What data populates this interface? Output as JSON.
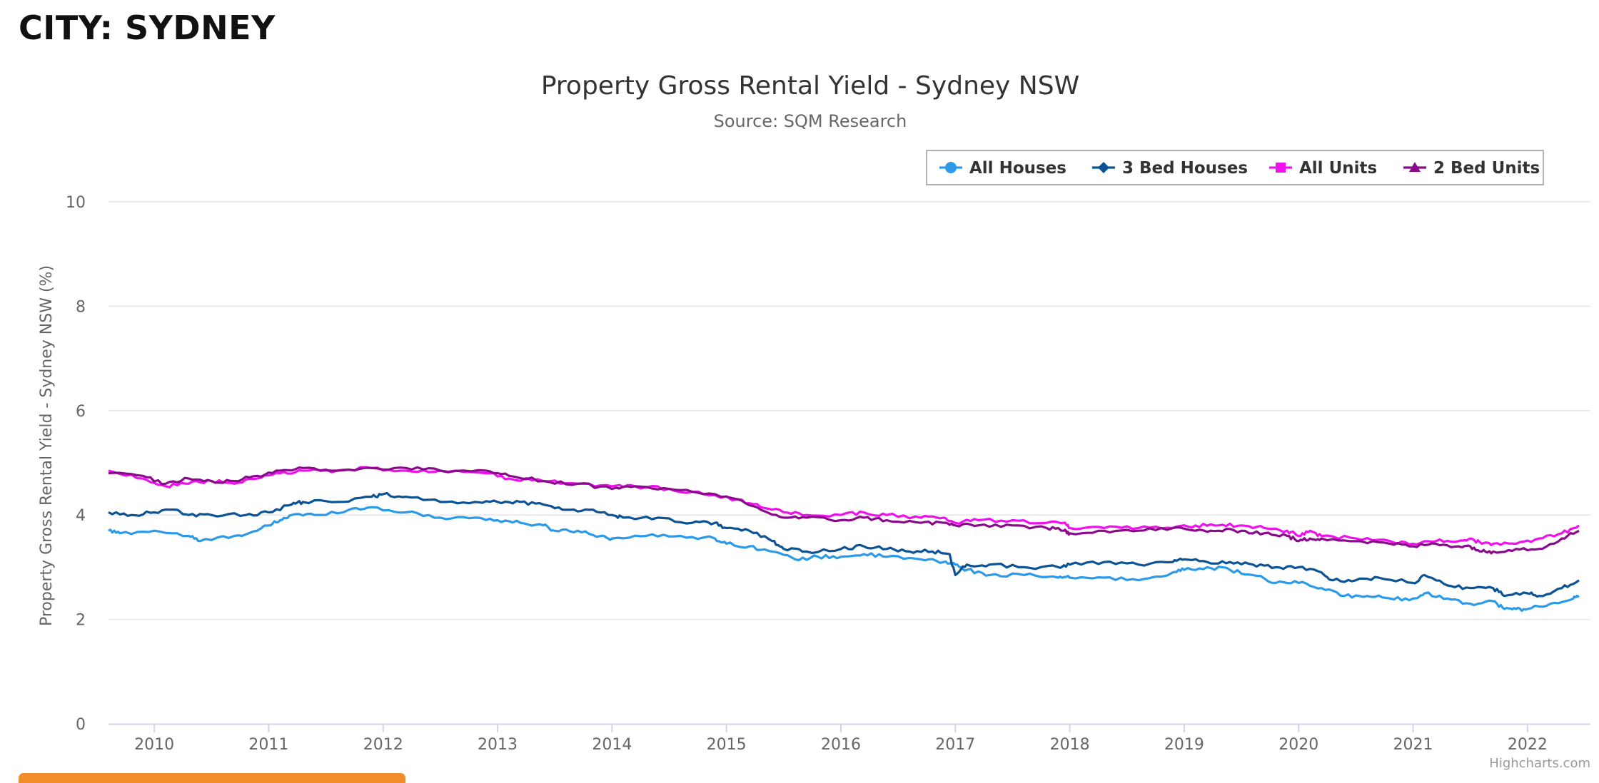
{
  "page": {
    "heading": "CITY: SYDNEY"
  },
  "chart_data": {
    "type": "line",
    "title": "Property Gross Rental Yield - Sydney NSW",
    "subtitle": "Source: SQM Research",
    "ylabel": "Property Gross Rental Yield - Sydney NSW (%)",
    "xlabel": "",
    "ylim": [
      0,
      10
    ],
    "yticks": [
      0,
      2,
      4,
      6,
      8,
      10
    ],
    "xlim": [
      2009.6,
      2022.55
    ],
    "xticks": [
      "2010",
      "2011",
      "2012",
      "2013",
      "2014",
      "2015",
      "2016",
      "2017",
      "2018",
      "2019",
      "2020",
      "2021",
      "2022"
    ],
    "grid": true,
    "legend": "top-right",
    "credit": "Highcharts.com",
    "series": [
      {
        "name": "All Houses",
        "color": "#2b9ae8",
        "marker": "circle",
        "x": [
          2009.6,
          2009.7,
          2010.0,
          2010.3,
          2010.4,
          2010.7,
          2010.9,
          2011.0,
          2011.1,
          2011.2,
          2011.4,
          2011.7,
          2011.9,
          2012.2,
          2012.5,
          2012.8,
          2013.0,
          2013.2,
          2013.4,
          2013.5,
          2013.7,
          2013.9,
          2014.0,
          2014.3,
          2014.6,
          2014.9,
          2015.0,
          2015.2,
          2015.4,
          2015.6,
          2015.8,
          2016.0,
          2016.2,
          2016.4,
          2016.7,
          2016.9,
          2017.0,
          2017.1,
          2017.3,
          2017.6,
          2017.9,
          2018.0,
          2018.3,
          2018.6,
          2018.9,
          2019.0,
          2019.2,
          2019.4,
          2019.6,
          2019.8,
          2020.0,
          2020.2,
          2020.4,
          2020.6,
          2020.8,
          2021.0,
          2021.1,
          2021.3,
          2021.5,
          2021.7,
          2021.8,
          2021.9,
          2022.0,
          2022.2,
          2022.4,
          2022.45
        ],
        "values": [
          3.7,
          3.65,
          3.7,
          3.6,
          3.5,
          3.6,
          3.7,
          3.8,
          3.9,
          4.0,
          4.0,
          4.1,
          4.15,
          4.05,
          3.95,
          3.95,
          3.9,
          3.85,
          3.8,
          3.7,
          3.7,
          3.6,
          3.55,
          3.6,
          3.6,
          3.55,
          3.45,
          3.4,
          3.3,
          3.15,
          3.2,
          3.2,
          3.25,
          3.2,
          3.15,
          3.1,
          3.05,
          2.95,
          2.85,
          2.85,
          2.8,
          2.8,
          2.8,
          2.75,
          2.9,
          2.95,
          3.0,
          2.95,
          2.85,
          2.7,
          2.7,
          2.6,
          2.45,
          2.45,
          2.4,
          2.4,
          2.5,
          2.4,
          2.3,
          2.35,
          2.2,
          2.2,
          2.2,
          2.3,
          2.4,
          2.45
        ]
      },
      {
        "name": "3 Bed Houses",
        "color": "#0b5394",
        "marker": "diamond",
        "x": [
          2009.6,
          2009.8,
          2010.0,
          2010.2,
          2010.3,
          2010.5,
          2010.8,
          2011.0,
          2011.2,
          2011.3,
          2011.6,
          2011.9,
          2012.0,
          2012.2,
          2012.5,
          2012.8,
          2013.0,
          2013.2,
          2013.4,
          2013.6,
          2013.8,
          2014.0,
          2014.1,
          2014.4,
          2014.7,
          2014.9,
          2015.0,
          2015.2,
          2015.4,
          2015.5,
          2015.7,
          2016.0,
          2016.2,
          2016.4,
          2016.6,
          2016.8,
          2016.95,
          2017.0,
          2017.1,
          2017.3,
          2017.6,
          2017.9,
          2018.0,
          2018.3,
          2018.6,
          2018.9,
          2019.0,
          2019.2,
          2019.4,
          2019.6,
          2019.8,
          2020.0,
          2020.2,
          2020.3,
          2020.5,
          2020.7,
          2021.0,
          2021.1,
          2021.3,
          2021.5,
          2021.7,
          2021.8,
          2022.0,
          2022.1,
          2022.3,
          2022.45
        ],
        "values": [
          4.05,
          4.0,
          4.05,
          4.1,
          4.0,
          4.0,
          4.0,
          4.05,
          4.2,
          4.25,
          4.25,
          4.35,
          4.4,
          4.35,
          4.25,
          4.25,
          4.25,
          4.25,
          4.2,
          4.1,
          4.1,
          4.0,
          3.95,
          3.95,
          3.85,
          3.85,
          3.75,
          3.7,
          3.5,
          3.35,
          3.3,
          3.35,
          3.4,
          3.35,
          3.3,
          3.3,
          3.25,
          2.85,
          3.05,
          3.05,
          3.0,
          3.0,
          3.05,
          3.1,
          3.05,
          3.1,
          3.15,
          3.1,
          3.1,
          3.05,
          3.0,
          3.0,
          2.9,
          2.75,
          2.75,
          2.8,
          2.7,
          2.85,
          2.65,
          2.6,
          2.6,
          2.45,
          2.5,
          2.45,
          2.6,
          2.75
        ]
      },
      {
        "name": "All Units",
        "color": "#ee11ee",
        "marker": "square",
        "x": [
          2009.6,
          2009.9,
          2010.1,
          2010.3,
          2010.5,
          2010.7,
          2010.9,
          2011.1,
          2011.3,
          2011.6,
          2011.9,
          2012.2,
          2012.5,
          2012.9,
          2013.1,
          2013.4,
          2013.7,
          2014.0,
          2014.2,
          2014.5,
          2014.8,
          2015.1,
          2015.3,
          2015.5,
          2015.7,
          2016.0,
          2016.2,
          2016.4,
          2016.7,
          2016.9,
          2017.0,
          2017.2,
          2017.5,
          2017.8,
          2017.95,
          2018.0,
          2018.3,
          2018.6,
          2018.9,
          2019.1,
          2019.3,
          2019.5,
          2019.7,
          2019.9,
          2020.0,
          2020.1,
          2020.2,
          2020.5,
          2020.8,
          2021.0,
          2021.2,
          2021.4,
          2021.5,
          2021.6,
          2021.7,
          2021.9,
          2022.1,
          2022.3,
          2022.45
        ],
        "values": [
          4.85,
          4.7,
          4.55,
          4.6,
          4.65,
          4.6,
          4.7,
          4.8,
          4.85,
          4.85,
          4.9,
          4.85,
          4.85,
          4.8,
          4.7,
          4.65,
          4.6,
          4.55,
          4.55,
          4.5,
          4.4,
          4.3,
          4.15,
          4.05,
          4.0,
          4.0,
          4.05,
          4.0,
          3.95,
          3.95,
          3.85,
          3.9,
          3.9,
          3.85,
          3.85,
          3.75,
          3.75,
          3.75,
          3.75,
          3.8,
          3.8,
          3.8,
          3.75,
          3.7,
          3.6,
          3.7,
          3.6,
          3.55,
          3.5,
          3.45,
          3.5,
          3.5,
          3.55,
          3.45,
          3.45,
          3.45,
          3.55,
          3.65,
          3.8
        ]
      },
      {
        "name": "2 Bed Units",
        "color": "#8b0a8b",
        "marker": "triangle",
        "x": [
          2009.6,
          2009.9,
          2010.1,
          2010.3,
          2010.5,
          2010.7,
          2010.9,
          2011.1,
          2011.3,
          2011.6,
          2011.9,
          2012.2,
          2012.5,
          2012.9,
          2013.1,
          2013.4,
          2013.7,
          2014.0,
          2014.2,
          2014.5,
          2014.8,
          2015.1,
          2015.3,
          2015.5,
          2015.7,
          2016.0,
          2016.2,
          2016.4,
          2016.7,
          2016.9,
          2017.0,
          2017.2,
          2017.5,
          2017.8,
          2017.95,
          2018.0,
          2018.3,
          2018.6,
          2018.9,
          2019.1,
          2019.3,
          2019.5,
          2019.7,
          2019.9,
          2020.0,
          2020.1,
          2020.2,
          2020.5,
          2020.8,
          2021.0,
          2021.2,
          2021.4,
          2021.5,
          2021.6,
          2021.7,
          2021.9,
          2022.1,
          2022.3,
          2022.45
        ],
        "values": [
          4.8,
          4.75,
          4.6,
          4.7,
          4.65,
          4.65,
          4.75,
          4.85,
          4.9,
          4.85,
          4.9,
          4.9,
          4.85,
          4.85,
          4.75,
          4.65,
          4.6,
          4.5,
          4.55,
          4.5,
          4.4,
          4.3,
          4.1,
          3.95,
          3.95,
          3.9,
          3.95,
          3.9,
          3.85,
          3.85,
          3.8,
          3.8,
          3.8,
          3.75,
          3.7,
          3.65,
          3.7,
          3.7,
          3.75,
          3.7,
          3.7,
          3.7,
          3.65,
          3.6,
          3.5,
          3.55,
          3.55,
          3.5,
          3.45,
          3.4,
          3.45,
          3.4,
          3.4,
          3.3,
          3.3,
          3.35,
          3.35,
          3.55,
          3.7
        ]
      }
    ]
  }
}
